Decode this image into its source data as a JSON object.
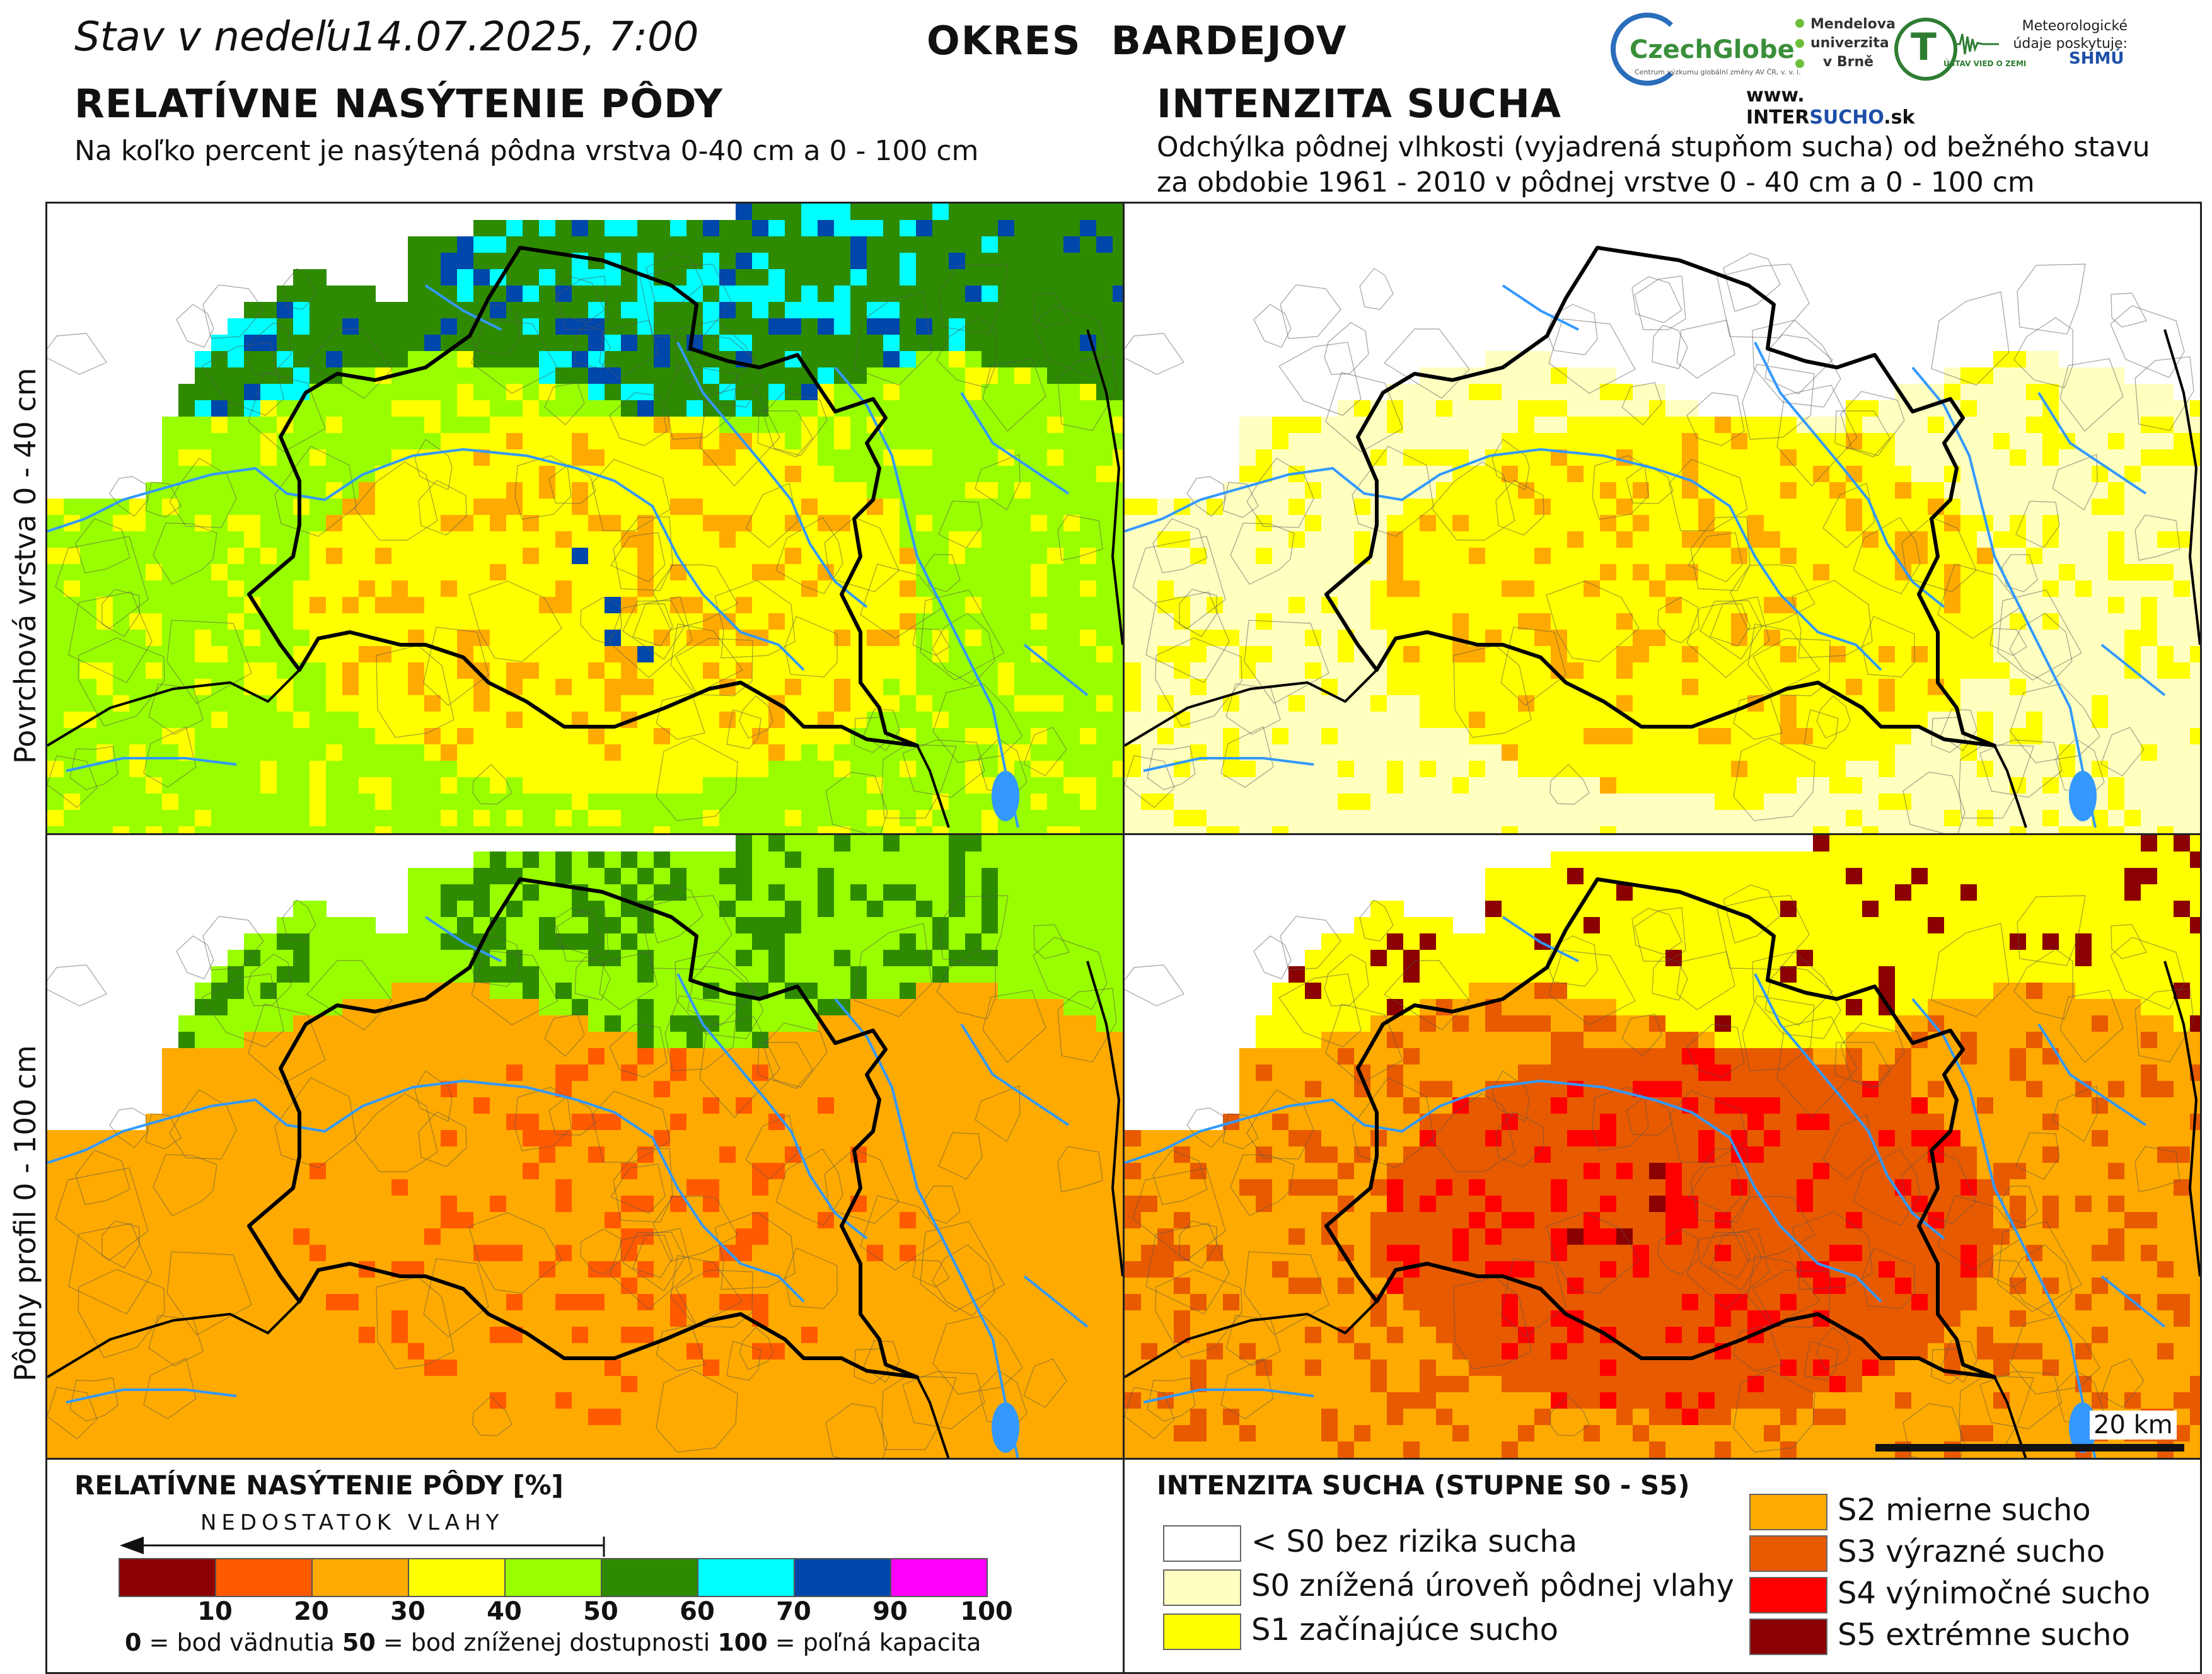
{
  "header": {
    "date_prefix": "Stav v nedeľu",
    "date": "14.07.2025, 7:00",
    "district": "OKRES  BARDEJOV"
  },
  "left_section": {
    "title": "RELATÍVNE NASÝTENIE PÔDY",
    "subtitle": "Na koľko percent je nasýtená pôdna vrstva 0-40 cm a 0 - 100 cm"
  },
  "right_section": {
    "title": "INTENZITA SUCHA",
    "subtitle_line1": "Odchýlka pôdnej vlhkosti (vyjadrená stupňom sucha) od bežného stavu",
    "subtitle_line2": "za obdobie 1961 - 2010 v pôdnej vrstve 0 - 40 cm a 0 - 100 cm"
  },
  "logos": {
    "czechglobe": "CzechGlobe",
    "czechglobe_sub": "Centrum výzkumu globální změny AV ČR, v. v. i.",
    "mendel": "Mendelova univerzita v Brně",
    "ustav": "ÚSTAV VIED O ZEMI",
    "meteo": "Meteorologické údaje poskytuje:",
    "shmu": "SHMÚ",
    "intersucho_prefix": "www.",
    "intersucho_inter": "INTER",
    "intersucho_sucho": "SUCHO",
    "intersucho_suffix": ".sk"
  },
  "row_labels": {
    "top": "Povrchová vrstva 0 - 40 cm",
    "bottom": "Pôdny profil 0 - 100 cm"
  },
  "scale": {
    "label": "20 km"
  },
  "saturation_legend": {
    "title": "RELATÍVNE NASÝTENIE PÔDY [%]",
    "arrow_label": "NEDOSTATOK VLAHY",
    "ticks": [
      "10",
      "20",
      "30",
      "40",
      "50",
      "60",
      "70",
      "90",
      "100"
    ],
    "tick_values": [
      10,
      20,
      30,
      40,
      50,
      60,
      70,
      90,
      100
    ],
    "colors": [
      "#8b0000",
      "#ff5a00",
      "#ffaa00",
      "#ffff00",
      "#99ff00",
      "#2e8b00",
      "#00ffff",
      "#0047ab",
      "#ff00ff"
    ],
    "note_0": "0",
    "note_0_text": " = bod vädnutia",
    "note_50": "50",
    "note_50_text": " = bod zníženej dostupnosti",
    "note_100": "100",
    "note_100_text": " = poľná kapacita"
  },
  "drought_legend": {
    "title": "INTENZITA SUCHA (STUPNE S0 - S5)",
    "items": [
      {
        "label": "< S0 bez rizika sucha",
        "color": "#ffffff"
      },
      {
        "label": "S0 znížená úroveň pôdnej vlahy",
        "color": "#ffffc0"
      },
      {
        "label": "S1 začínajúce sucho",
        "color": "#ffff00"
      },
      {
        "label": "S2 mierne sucho",
        "color": "#ffaa00"
      },
      {
        "label": "S3 výrazné sucho",
        "color": "#e85a00"
      },
      {
        "label": "S4 výnimočné sucho",
        "color": "#ff0000"
      },
      {
        "label": "S5 extrémne sucho",
        "color": "#8b0000"
      }
    ]
  },
  "maps": {
    "top_left": {
      "layer": "saturation_0_40",
      "base": "#99ff00",
      "core": "#ffff00",
      "hot": "#ffaa00",
      "north": "#2e8b00",
      "cold": "#00ffff",
      "deep": "#0047ab"
    },
    "top_right": {
      "layer": "drought_0_40",
      "base": "#ffffc0",
      "core": "#ffff00",
      "hot": "#ffaa00",
      "north": "#ffffff"
    },
    "bottom_left": {
      "layer": "saturation_0_100",
      "base": "#ffaa00",
      "core": "#ffaa00",
      "hot": "#ff5a00",
      "north": "#99ff00",
      "cold": "#2e8b00"
    },
    "bottom_right": {
      "layer": "drought_0_100",
      "base": "#ffaa00",
      "core": "#e85a00",
      "hot": "#ff0000",
      "north": "#ffff00",
      "deep": "#8b0000"
    }
  },
  "colors": {
    "river": "#3399ff",
    "district_border": "#000000",
    "municipal_border": "#555555"
  }
}
